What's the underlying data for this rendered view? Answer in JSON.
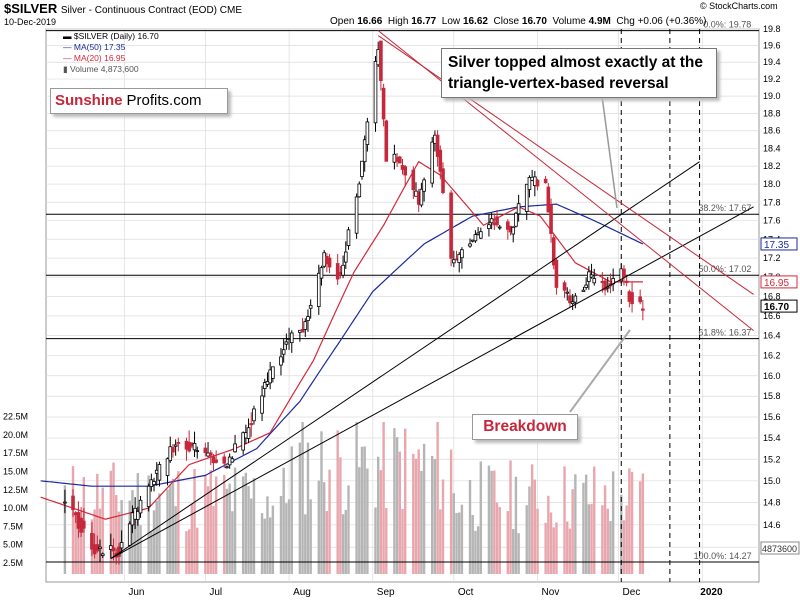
{
  "header": {
    "symbol": "$SILVER",
    "subtitle": "Silver - Continuous Contract (EOD)  CME",
    "date": "10-Dec-2019",
    "open_label": "Open",
    "open": "16.66",
    "high_label": "High",
    "high": "16.77",
    "low_label": "Low",
    "low": "16.62",
    "close_label": "Close",
    "close": "16.70",
    "volume_label": "Volume",
    "volume": "4.9M",
    "chg_label": "Chg",
    "chg": "+0.06 (+0.36%)",
    "credit": "© StockCharts.com"
  },
  "legend": {
    "price": "▬ $SILVER (Daily) 16.70",
    "ma50": "— MA(50) 17.35",
    "ma20": "— MA(20) 16.95",
    "volume": "▮ Volume 4,873,600"
  },
  "annotations": {
    "callout_line1": "Silver topped almost exactly at the",
    "callout_line2": "triangle-vertex-based reversal",
    "breakdown": "Breakdown",
    "logo_part1": "Sunshine",
    "logo_part2": "Profits.com"
  },
  "colors": {
    "up": "#000000",
    "down": "#c4283a",
    "ma50": "#1a2a9c",
    "ma20": "#d4283a",
    "vol_down": "#e8a6ad",
    "vol_up": "#b5b5b5",
    "grid": "#dcdcdc",
    "price_badge": "#1a2a9c",
    "ma_badge": "#d4283a"
  },
  "chart_data": {
    "type": "candlestick",
    "title": "$SILVER Silver - Continuous Contract (EOD) CME",
    "y_axis": {
      "side": "right",
      "range": [
        14.2,
        19.8
      ],
      "scale": "log",
      "ticks": [
        "14.4",
        "14.6",
        "14.8",
        "15.0",
        "15.2",
        "15.4",
        "15.6",
        "15.8",
        "16.0",
        "16.2",
        "16.4",
        "16.6",
        "16.8",
        "17.0",
        "17.2",
        "17.4",
        "17.6",
        "17.8",
        "18.0",
        "18.2",
        "18.4",
        "18.6",
        "18.8",
        "19.0",
        "19.2",
        "19.4",
        "19.6",
        "19.8"
      ]
    },
    "volume_axis": {
      "side": "left",
      "ticks": [
        "2.5M",
        "5.0M",
        "7.5M",
        "10.0M",
        "12.5M",
        "15.0M",
        "17.5M",
        "20.0M",
        "22.5M"
      ]
    },
    "x_axis": {
      "ticks": [
        "Jun",
        "Jul",
        "Aug",
        "Sep",
        "Oct",
        "Nov",
        "Dec",
        "2020"
      ]
    },
    "fib_levels": [
      {
        "label": "0.0%: 19.78",
        "value": 19.78
      },
      {
        "label": "38.2%: 17.67",
        "value": 17.67
      },
      {
        "label": "50.0%: 17.02",
        "value": 17.02
      },
      {
        "label": "61.8%: 16.37",
        "value": 16.37
      },
      {
        "label": "100.0%: 14.27",
        "value": 14.27
      }
    ],
    "badges": [
      {
        "label": "17.35",
        "value": 17.35,
        "series": "MA(50)"
      },
      {
        "label": "16.95",
        "value": 16.95,
        "series": "MA(20)"
      },
      {
        "label": "16.70",
        "value": 16.7,
        "series": "Close"
      }
    ],
    "volume_badge": {
      "label": "4873600",
      "value": 4873600
    },
    "price_keyframes": [
      [
        "2019-05-10",
        14.85
      ],
      [
        "2019-05-20",
        14.4
      ],
      [
        "2019-05-30",
        14.35
      ],
      [
        "2019-06-04",
        14.65
      ],
      [
        "2019-06-14",
        15.1
      ],
      [
        "2019-06-20",
        15.35
      ],
      [
        "2019-06-28",
        15.3
      ],
      [
        "2019-07-08",
        15.15
      ],
      [
        "2019-07-16",
        15.45
      ],
      [
        "2019-07-22",
        15.85
      ],
      [
        "2019-07-31",
        16.35
      ],
      [
        "2019-08-06",
        16.45
      ],
      [
        "2019-08-14",
        17.2
      ],
      [
        "2019-08-20",
        17.0
      ],
      [
        "2019-08-27",
        18.05
      ],
      [
        "2019-09-03",
        19.6
      ],
      [
        "2019-09-06",
        18.25
      ],
      [
        "2019-09-10",
        18.3
      ],
      [
        "2019-09-18",
        17.8
      ],
      [
        "2019-09-24",
        18.6
      ],
      [
        "2019-09-30",
        17.15
      ],
      [
        "2019-10-08",
        17.4
      ],
      [
        "2019-10-15",
        17.6
      ],
      [
        "2019-10-22",
        17.5
      ],
      [
        "2019-10-29",
        18.05
      ],
      [
        "2019-11-04",
        18.0
      ],
      [
        "2019-11-08",
        16.9
      ],
      [
        "2019-11-14",
        16.75
      ],
      [
        "2019-11-20",
        17.0
      ],
      [
        "2019-11-27",
        16.9
      ],
      [
        "2019-12-02",
        17.1
      ],
      [
        "2019-12-05",
        16.8
      ],
      [
        "2019-12-10",
        16.7
      ]
    ],
    "ma50_keyframes": [
      [
        "2019-05-01",
        15.0
      ],
      [
        "2019-05-20",
        14.95
      ],
      [
        "2019-06-10",
        14.95
      ],
      [
        "2019-07-01",
        15.05
      ],
      [
        "2019-07-20",
        15.3
      ],
      [
        "2019-08-05",
        15.75
      ],
      [
        "2019-08-20",
        16.35
      ],
      [
        "2019-09-01",
        16.85
      ],
      [
        "2019-09-20",
        17.35
      ],
      [
        "2019-10-08",
        17.65
      ],
      [
        "2019-10-25",
        17.75
      ],
      [
        "2019-11-08",
        17.78
      ],
      [
        "2019-11-22",
        17.6
      ],
      [
        "2019-12-10",
        17.35
      ]
    ],
    "ma20_keyframes": [
      [
        "2019-05-01",
        14.85
      ],
      [
        "2019-05-25",
        14.65
      ],
      [
        "2019-06-10",
        14.75
      ],
      [
        "2019-06-25",
        15.15
      ],
      [
        "2019-07-12",
        15.3
      ],
      [
        "2019-07-25",
        15.45
      ],
      [
        "2019-08-10",
        16.15
      ],
      [
        "2019-08-25",
        17.05
      ],
      [
        "2019-09-05",
        17.55
      ],
      [
        "2019-09-18",
        18.25
      ],
      [
        "2019-09-26",
        18.1
      ],
      [
        "2019-10-12",
        17.55
      ],
      [
        "2019-10-25",
        17.75
      ],
      [
        "2019-11-02",
        17.65
      ],
      [
        "2019-11-15",
        17.15
      ],
      [
        "2019-11-28",
        16.95
      ],
      [
        "2019-12-10",
        16.95
      ]
    ],
    "trendlines": [
      {
        "name": "black-upper",
        "from": [
          "2019-05-27",
          14.3
        ],
        "to": [
          "2019-12-31",
          18.25
        ]
      },
      {
        "name": "black-lower",
        "from": [
          "2019-05-27",
          14.3
        ],
        "to": [
          "2020-01-20",
          17.75
        ]
      },
      {
        "name": "red-upper",
        "from": [
          "2019-09-03",
          19.78
        ],
        "to": [
          "2020-01-20",
          16.45
        ]
      },
      {
        "name": "red-lower",
        "from": [
          "2019-09-03",
          19.72
        ],
        "to": [
          "2020-01-20",
          16.82
        ]
      }
    ],
    "vertical_dashed": [
      "2019-12-02",
      "2019-12-20",
      "2019-12-31"
    ]
  }
}
